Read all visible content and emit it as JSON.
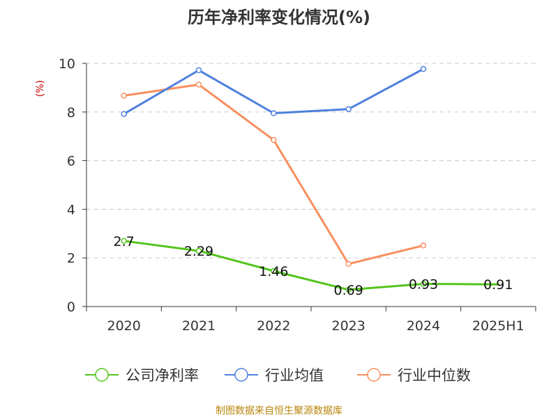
{
  "chart_data": {
    "type": "line",
    "title": "历年净利率变化情况(%)",
    "ylabel": "(%)",
    "ylim": [
      0,
      10
    ],
    "yticks": [
      0,
      2,
      4,
      6,
      8,
      10
    ],
    "categories": [
      "2020",
      "2021",
      "2022",
      "2023",
      "2024",
      "2025H1"
    ],
    "series": [
      {
        "name": "公司净利率",
        "color": "#52C41A",
        "values": [
          2.7,
          2.29,
          1.46,
          0.69,
          0.93,
          0.91
        ],
        "labels": [
          "2.7",
          "2.29",
          "1.46",
          "0.69",
          "0.93",
          "0.91"
        ],
        "show_labels": true,
        "show_markers": true
      },
      {
        "name": "行业均值",
        "color": "#4D7FDC",
        "values": [
          7.92,
          9.72,
          7.95,
          8.12,
          9.77,
          null
        ],
        "show_labels": false,
        "show_markers": true
      },
      {
        "name": "行业中位数",
        "color": "#F98E5E",
        "values": [
          8.67,
          9.13,
          6.85,
          1.75,
          2.51,
          null
        ],
        "show_labels": false,
        "show_markers": true
      }
    ],
    "grid": true,
    "legend_position": "bottom",
    "ylabel_color": "#CC0000"
  },
  "footer": {
    "source": "制图数据来自恒生聚源数据库",
    "source_color": "#B8860B"
  }
}
